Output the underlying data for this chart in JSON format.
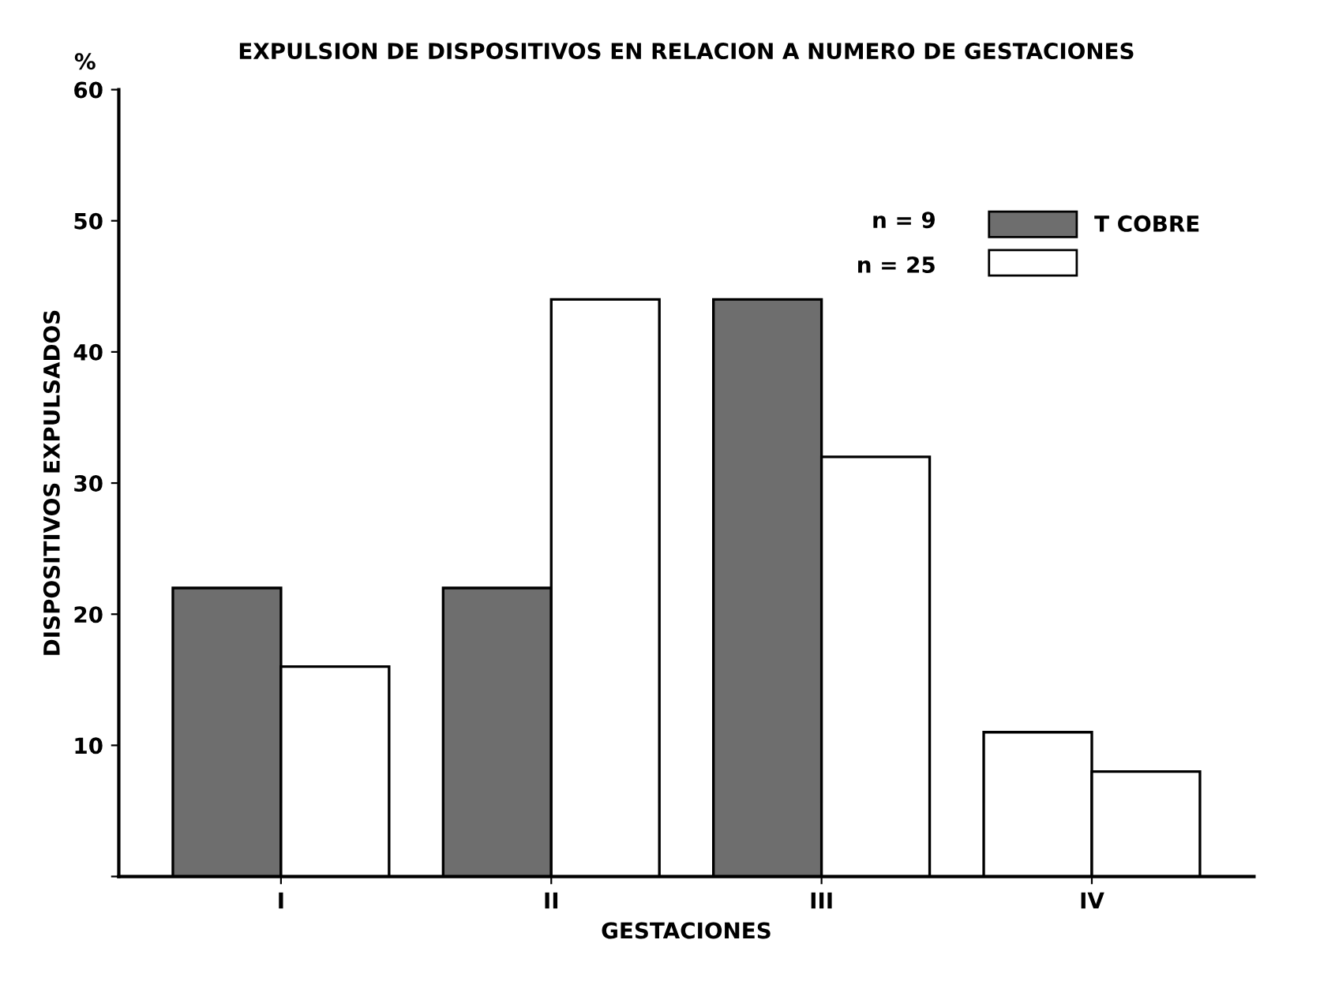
{
  "chart_data": {
    "type": "bar",
    "title": "EXPULSION DE DISPOSITIVOS EN RELACION A NUMERO DE GESTACIONES",
    "xlabel": "GESTACIONES",
    "ylabel": "DISPOSITIVOS EXPULSADOS",
    "categories": [
      "I",
      "II",
      "III",
      "IV"
    ],
    "series": [
      {
        "name": "T COBRE",
        "color": "#6e6e6e",
        "colors": [
          "#6e6e6e",
          "#6e6e6e",
          "#6e6e6e",
          "#ffffff"
        ],
        "values": [
          22,
          22,
          44,
          11
        ]
      },
      {
        "color": "#ffffff",
        "values": [
          16,
          44,
          32,
          8
        ]
      }
    ],
    "ylim": [
      0,
      60
    ],
    "yticks": [
      {
        "value": 0,
        "label": null
      },
      10,
      20,
      30,
      40,
      50,
      60
    ],
    "annotations": [
      "%",
      "n = 9",
      "n = 25"
    ],
    "legend": "top right",
    "grid": false
  }
}
